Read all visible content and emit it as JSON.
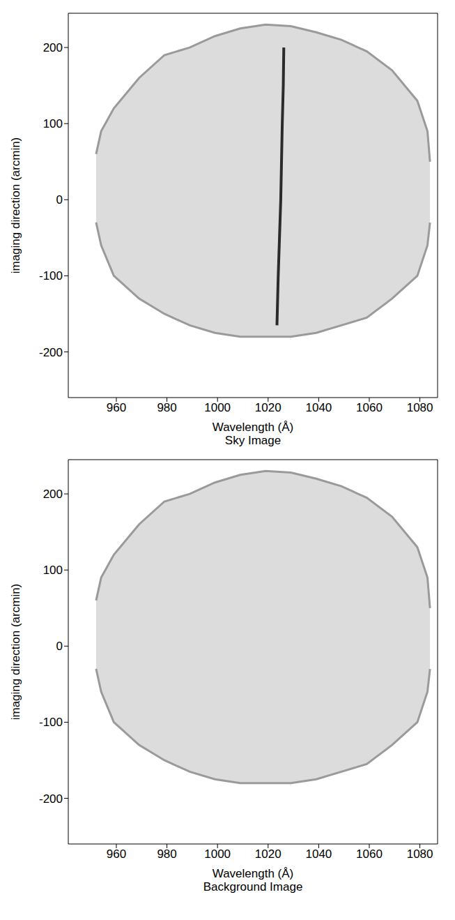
{
  "chart_data": [
    {
      "type": "spectral_image",
      "title": "Sky Image",
      "x_label": "Wavelength (Å)",
      "y_label": "imaging direction (arcmin)",
      "xlim": [
        941,
        1087
      ],
      "xticks": [
        960,
        980,
        1000,
        1020,
        1040,
        1060,
        1080
      ],
      "ylim": [
        -260,
        245
      ],
      "yticks": [
        -200,
        -100,
        0,
        100,
        200
      ],
      "series": [
        {
          "type": "area",
          "color": "#dcdcdc",
          "x": [
            952,
            954,
            959,
            969,
            979,
            989,
            999,
            1009,
            1019,
            1029,
            1039,
            1049,
            1059,
            1069,
            1079,
            1083,
            1084
          ],
          "values": [
            [
              -30,
              60
            ],
            [
              -60,
              90
            ],
            [
              -100,
              120
            ],
            [
              -130,
              160
            ],
            [
              -150,
              190
            ],
            [
              -165,
              200
            ],
            [
              -175,
              215
            ],
            [
              -180,
              225
            ],
            [
              -180,
              230
            ],
            [
              -180,
              228
            ],
            [
              -175,
              220
            ],
            [
              -165,
              210
            ],
            [
              -155,
              195
            ],
            [
              -130,
              170
            ],
            [
              -100,
              130
            ],
            [
              -60,
              90
            ],
            [
              -30,
              50
            ]
          ]
        },
        {
          "type": "line",
          "color": "#2b2b2b",
          "x": [
            1023.5,
            1024,
            1024.5,
            1025,
            1025.3,
            1025.6,
            1026,
            1026.2
          ],
          "values": [
            -165,
            -100,
            -50,
            0,
            50,
            100,
            150,
            200
          ]
        }
      ]
    },
    {
      "type": "spectral_image",
      "title": "Background Image",
      "x_label": "Wavelength (Å)",
      "y_label": "imaging direction (arcmin)",
      "xlim": [
        941,
        1087
      ],
      "xticks": [
        960,
        980,
        1000,
        1020,
        1040,
        1060,
        1080
      ],
      "ylim": [
        -260,
        245
      ],
      "yticks": [
        -200,
        -100,
        0,
        100,
        200
      ],
      "series": [
        {
          "type": "area",
          "color": "#dcdcdc",
          "x": [
            952,
            954,
            959,
            969,
            979,
            989,
            999,
            1009,
            1019,
            1029,
            1039,
            1049,
            1059,
            1069,
            1079,
            1083,
            1084
          ],
          "values": [
            [
              -30,
              60
            ],
            [
              -60,
              90
            ],
            [
              -100,
              120
            ],
            [
              -130,
              160
            ],
            [
              -150,
              190
            ],
            [
              -165,
              200
            ],
            [
              -175,
              215
            ],
            [
              -180,
              225
            ],
            [
              -180,
              230
            ],
            [
              -180,
              228
            ],
            [
              -175,
              220
            ],
            [
              -165,
              210
            ],
            [
              -155,
              195
            ],
            [
              -130,
              170
            ],
            [
              -100,
              130
            ],
            [
              -60,
              90
            ],
            [
              -30,
              50
            ]
          ]
        }
      ]
    }
  ]
}
